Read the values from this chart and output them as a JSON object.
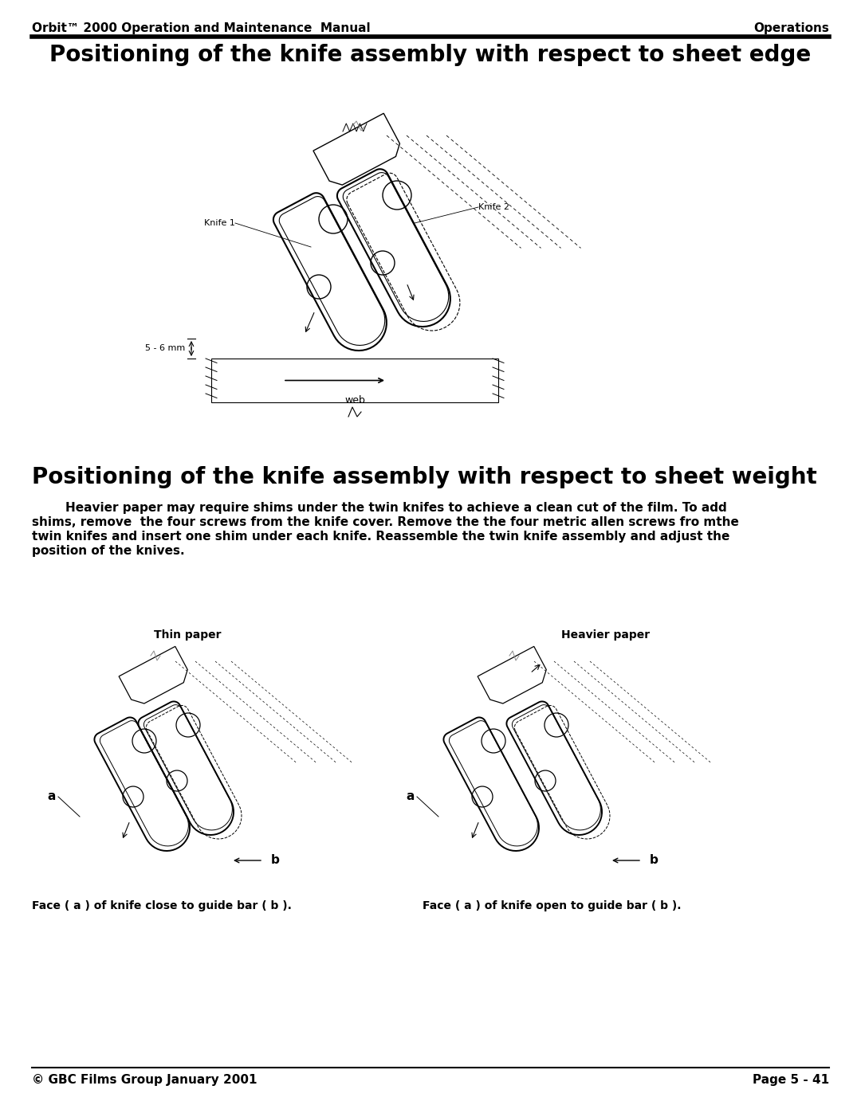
{
  "page_width": 10.8,
  "page_height": 13.97,
  "bg_color": "#ffffff",
  "header_left": "Orbit™ 2000 Operation and Maintenance  Manual",
  "header_right": "Operations",
  "title1": "Positioning of the knife assembly with respect to sheet edge",
  "title2": "Positioning of the knife assembly with respect to sheet weight",
  "body_text_lines": [
    "        Heavier paper may require shims under the twin knifes to achieve a clean cut of the film. To add",
    "shims, remove  the four screws from the knife cover. Remove the the four metric allen screws fro mthe",
    "twin knifes and insert one shim under each knife. Reassemble the twin knife assembly and adjust the",
    "position of the knives."
  ],
  "label_thin_paper": "Thin paper",
  "label_heavier_paper": "Heavier paper",
  "label_face_a_close": "Face ( a ) of knife close to guide bar ( b ).",
  "label_face_a_open": "Face ( a ) of knife open to guide bar ( b ).",
  "footer_left": "© GBC Films Group January 2001",
  "footer_right": "Page 5 - 41",
  "header_fontsize": 11,
  "title_fontsize": 20,
  "body_fontsize": 11,
  "footer_fontsize": 11
}
